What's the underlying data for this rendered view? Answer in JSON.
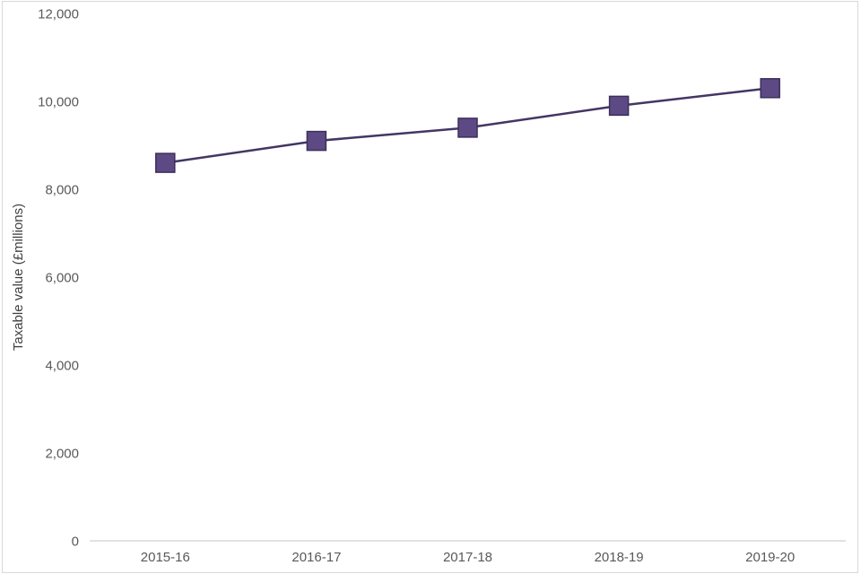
{
  "chart_data": {
    "type": "line",
    "categories": [
      "2015-16",
      "2016-17",
      "2017-18",
      "2018-19",
      "2019-20"
    ],
    "series": [
      {
        "name": "Taxable value",
        "values": [
          8600,
          9100,
          9400,
          9900,
          10300
        ]
      }
    ],
    "title": "",
    "xlabel": "",
    "ylabel": "Taxable value (£millions)",
    "ylim": [
      0,
      12000
    ],
    "ytick_step": 2000,
    "ytick_labels": [
      "0",
      "2,000",
      "4,000",
      "6,000",
      "8,000",
      "10,000",
      "12,000"
    ],
    "grid": false,
    "legend": "none",
    "marker": "square",
    "colors": {
      "line": "#433663",
      "marker_fill": "#5d4a85",
      "marker_border": "#3c2f5a",
      "axis": "#d9d9d9",
      "tick_text": "#595959",
      "ylabel_text": "#404040",
      "background": "#ffffff",
      "frame_border": "#d9d9d9"
    }
  }
}
